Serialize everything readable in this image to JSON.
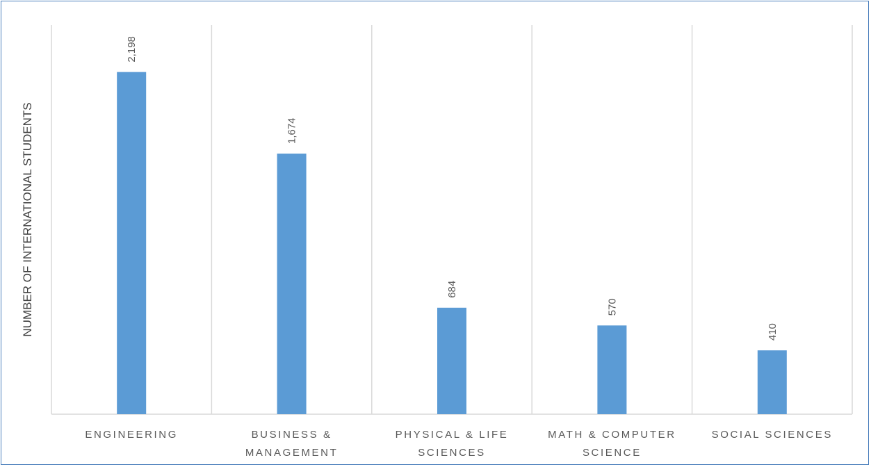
{
  "chart_data": {
    "type": "bar",
    "title": "",
    "xlabel": "",
    "ylabel": "NUMBER OF INTERNATIONAL STUDENTS",
    "categories": [
      [
        "ENGINEERING"
      ],
      [
        "BUSINESS &",
        "MANAGEMENT"
      ],
      [
        "PHYSICAL & LIFE",
        "SCIENCES"
      ],
      [
        "MATH & COMPUTER",
        "SCIENCE"
      ],
      [
        "SOCIAL SCIENCES"
      ]
    ],
    "values": [
      2198,
      1674,
      684,
      570,
      410
    ],
    "value_labels": [
      "2,198",
      "1,674",
      "684",
      "570",
      "410"
    ],
    "ylim": [
      0,
      2500
    ],
    "bar_color": "#5b9bd5",
    "gridline_color": "#d9d9d9",
    "grid": true,
    "legend": "none"
  }
}
